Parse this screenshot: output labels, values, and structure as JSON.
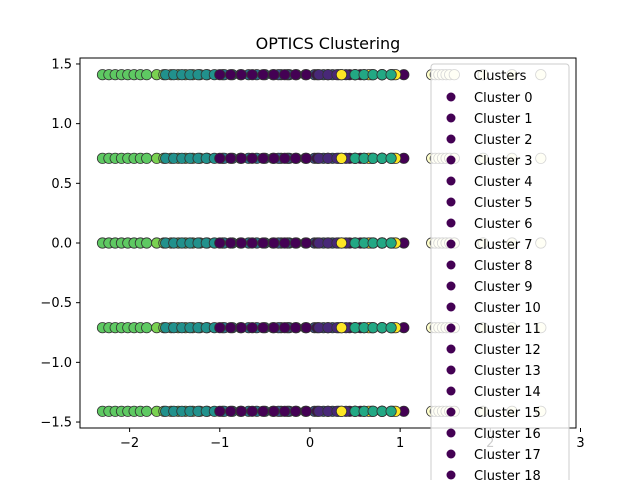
{
  "chart_data": {
    "type": "scatter",
    "title": "OPTICS Clustering",
    "xlabel": "",
    "ylabel": "",
    "xlim": [
      -2.55,
      2.95
    ],
    "ylim": [
      -1.55,
      1.55
    ],
    "x_ticks": [
      -2,
      -1,
      0,
      1,
      2,
      3
    ],
    "y_ticks": [
      -1.5,
      -1.0,
      -0.5,
      0.0,
      0.5,
      1.0,
      1.5
    ],
    "x_tick_labels": [
      "−2",
      "−1",
      "0",
      "1",
      "2",
      "3"
    ],
    "y_tick_labels": [
      "−1.5",
      "−1.0",
      "−0.5",
      "0.0",
      "0.5",
      "1.0",
      "1.5"
    ],
    "grid": false,
    "y_levels": [
      -1.41,
      -0.71,
      0.0,
      0.71,
      1.41
    ],
    "point_groups": [
      {
        "color": "#5ec962",
        "x_range": [
          -2.3,
          -1.75
        ],
        "step": 0.07
      },
      {
        "color": "#7ad151",
        "x_range": [
          -1.7,
          -1.1
        ],
        "step": 0.08
      },
      {
        "color": "#21918c",
        "x_range": [
          -1.6,
          -0.9
        ],
        "step": 0.09
      },
      {
        "color": "#2c728e",
        "x_range": [
          -0.95,
          -0.2
        ],
        "step": 0.09
      },
      {
        "color": "#3b528b",
        "x_range": [
          -0.35,
          0.4
        ],
        "step": 0.1
      },
      {
        "color": "#440154",
        "x_range": [
          -1.0,
          1.1
        ],
        "step": 0.12
      },
      {
        "color": "#482878",
        "x_range": [
          0.1,
          0.9
        ],
        "step": 0.1
      },
      {
        "color": "#fde725",
        "x_range": [
          0.35,
          0.95
        ],
        "step": 0.15
      },
      {
        "color": "#22a884",
        "x_range": [
          0.5,
          0.9
        ],
        "step": 0.1
      },
      {
        "color": "#ffffcc",
        "x_range": [
          1.35,
          1.55
        ],
        "step": 0.04
      },
      {
        "color": "#ffffcc",
        "x_range": [
          1.6,
          2.85
        ],
        "step": 0.32
      }
    ],
    "legend": {
      "title": "Clusters",
      "placement": "right",
      "marker_color": "#440154",
      "entries": [
        "Cluster 0",
        "Cluster 1",
        "Cluster 2",
        "Cluster 3",
        "Cluster 4",
        "Cluster 5",
        "Cluster 6",
        "Cluster 7",
        "Cluster 8",
        "Cluster 9",
        "Cluster 10",
        "Cluster 11",
        "Cluster 12",
        "Cluster 13",
        "Cluster 14",
        "Cluster 15",
        "Cluster 16",
        "Cluster 17",
        "Cluster 18"
      ]
    }
  }
}
